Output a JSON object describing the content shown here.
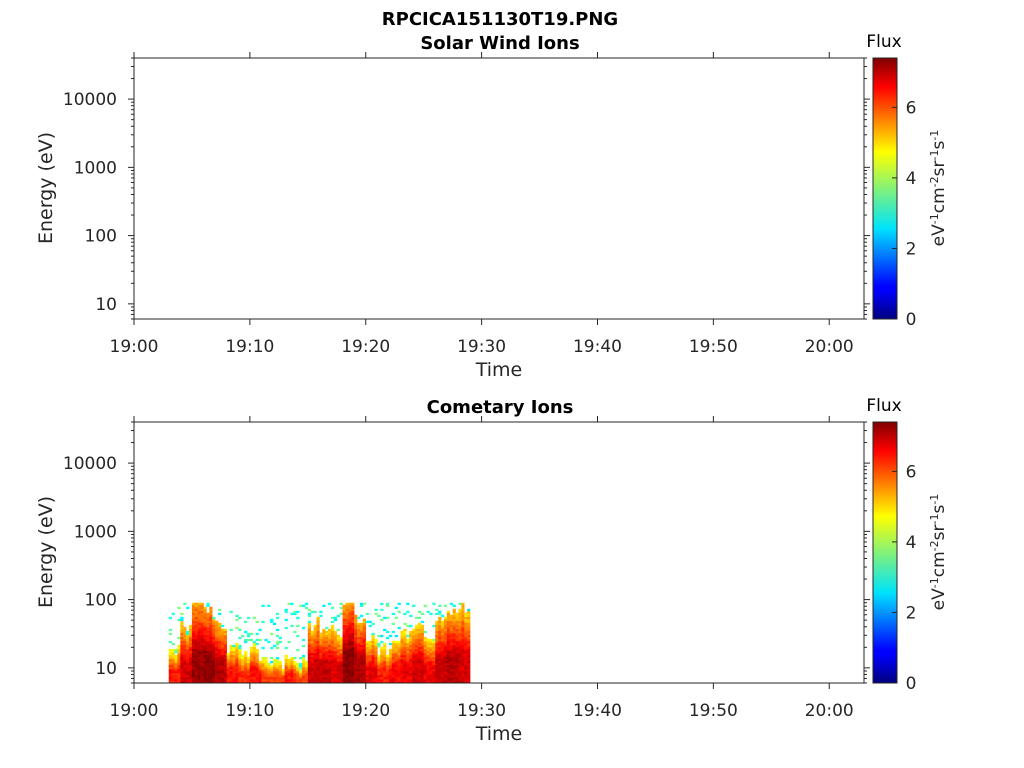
{
  "figure_title": "RPCICA151130T19.PNG",
  "colorbar": {
    "title": "Flux",
    "label_parts": [
      {
        "t": "eV",
        "sup": false
      },
      {
        "t": "-1",
        "sup": true
      },
      {
        "t": "cm",
        "sup": false
      },
      {
        "t": "-2",
        "sup": true
      },
      {
        "t": "sr",
        "sup": false
      },
      {
        "t": "-1",
        "sup": true
      },
      {
        "t": "s",
        "sup": false
      },
      {
        "t": "-1",
        "sup": true
      }
    ],
    "range": [
      0,
      7.4
    ],
    "ticks": [
      0,
      2,
      4,
      6
    ],
    "colormap": "jet"
  },
  "chart_data": [
    {
      "type": "heatmap",
      "title": "Solar Wind Ions",
      "xlabel": "Time",
      "ylabel": "Energy (eV)",
      "y_scale": "log",
      "ylim": [
        6,
        40000
      ],
      "xlim": [
        "19:00",
        "20:03"
      ],
      "x_ticks": [
        "19:00",
        "19:10",
        "19:20",
        "19:30",
        "19:40",
        "19:50",
        "20:00"
      ],
      "y_ticks": [
        10,
        100,
        1000,
        10000
      ],
      "y_tick_labels": [
        "10",
        "100",
        "1000",
        "10000"
      ],
      "spectrogram": []
    },
    {
      "type": "heatmap",
      "title": "Cometary Ions",
      "xlabel": "Time",
      "ylabel": "Energy (eV)",
      "y_scale": "log",
      "ylim": [
        6,
        40000
      ],
      "xlim": [
        "19:00",
        "20:03"
      ],
      "x_ticks": [
        "19:00",
        "19:10",
        "19:20",
        "19:30",
        "19:40",
        "19:50",
        "20:00"
      ],
      "y_ticks": [
        10,
        100,
        1000,
        10000
      ],
      "y_tick_labels": [
        "10",
        "100",
        "1000",
        "10000"
      ],
      "spectrogram": [
        {
          "t": "19:03",
          "top_eV": 18,
          "peak": 6.3
        },
        {
          "t": "19:04",
          "top_eV": 40,
          "peak": 6.8
        },
        {
          "t": "19:05",
          "top_eV": 75,
          "peak": 7.2
        },
        {
          "t": "19:06",
          "top_eV": 70,
          "peak": 7.3
        },
        {
          "t": "19:07",
          "top_eV": 40,
          "peak": 7.0
        },
        {
          "t": "19:08",
          "top_eV": 18,
          "peak": 6.4
        },
        {
          "t": "19:09",
          "top_eV": 15,
          "peak": 6.2
        },
        {
          "t": "19:10",
          "top_eV": 17,
          "peak": 6.4
        },
        {
          "t": "19:11",
          "top_eV": 14,
          "peak": 6.0
        },
        {
          "t": "19:12",
          "top_eV": 13,
          "peak": 6.0
        },
        {
          "t": "19:13",
          "top_eV": 16,
          "peak": 6.3
        },
        {
          "t": "19:14",
          "top_eV": 12,
          "peak": 5.9
        },
        {
          "t": "19:15",
          "top_eV": 45,
          "peak": 6.8
        },
        {
          "t": "19:16",
          "top_eV": 40,
          "peak": 6.9
        },
        {
          "t": "19:17",
          "top_eV": 35,
          "peak": 6.7
        },
        {
          "t": "19:18",
          "top_eV": 80,
          "peak": 7.3
        },
        {
          "t": "19:19",
          "top_eV": 55,
          "peak": 7.1
        },
        {
          "t": "19:20",
          "top_eV": 25,
          "peak": 6.6
        },
        {
          "t": "19:21",
          "top_eV": 18,
          "peak": 6.3
        },
        {
          "t": "19:22",
          "top_eV": 22,
          "peak": 6.5
        },
        {
          "t": "19:23",
          "top_eV": 30,
          "peak": 6.6
        },
        {
          "t": "19:24",
          "top_eV": 45,
          "peak": 6.8
        },
        {
          "t": "19:25",
          "top_eV": 28,
          "peak": 6.6
        },
        {
          "t": "19:26",
          "top_eV": 60,
          "peak": 6.9
        },
        {
          "t": "19:27",
          "top_eV": 80,
          "peak": 7.0
        },
        {
          "t": "19:28",
          "top_eV": 70,
          "peak": 6.8
        }
      ]
    }
  ]
}
